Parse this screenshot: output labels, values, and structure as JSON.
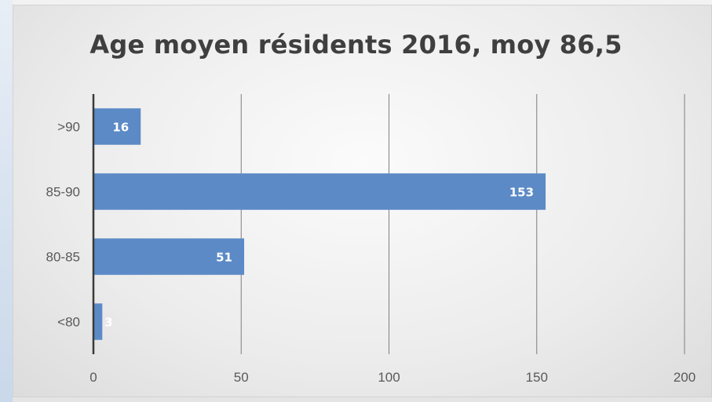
{
  "colors": {
    "bar": "#5b8ac6",
    "grid": "#7f7f7f",
    "axis": "#3a3a3a",
    "title": "#3f3f3f",
    "label": "#595959"
  },
  "chart_data": {
    "type": "bar",
    "orientation": "horizontal",
    "title": "Age moyen résidents 2016, moy 86,5",
    "categories": [
      ">90",
      "85-90",
      "80-85",
      "<80"
    ],
    "values": [
      16,
      153,
      51,
      3
    ],
    "data_labels": [
      "16",
      "153",
      "51",
      "3"
    ],
    "xlim": [
      0,
      200
    ],
    "x_ticks": [
      0,
      50,
      100,
      150,
      200
    ],
    "grid": true,
    "legend": "none"
  }
}
